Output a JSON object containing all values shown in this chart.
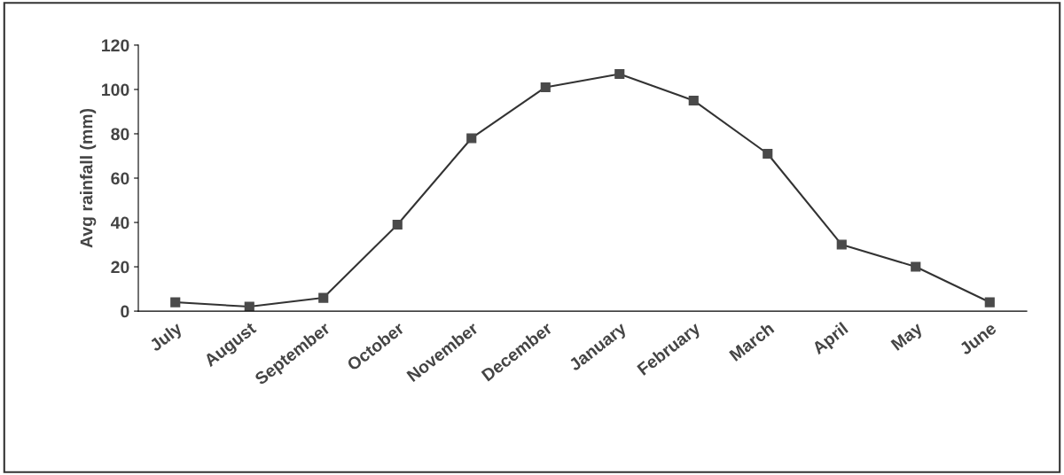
{
  "chart_data": {
    "type": "line",
    "ylabel": "Avg rainfall (mm)",
    "categories": [
      "July",
      "August",
      "September",
      "October",
      "November",
      "December",
      "January",
      "February",
      "March",
      "April",
      "May",
      "June"
    ],
    "series": [
      {
        "color": "#4a4a4a",
        "values": [
          4,
          2,
          6,
          39,
          78,
          101,
          107,
          95,
          71,
          30,
          20,
          4
        ]
      }
    ],
    "ylim": [
      0,
      120
    ],
    "yticks": [
      0,
      20,
      40,
      60,
      80,
      100,
      120
    ],
    "grid": false,
    "legend": false,
    "marker": "square",
    "line_style": "solid"
  }
}
